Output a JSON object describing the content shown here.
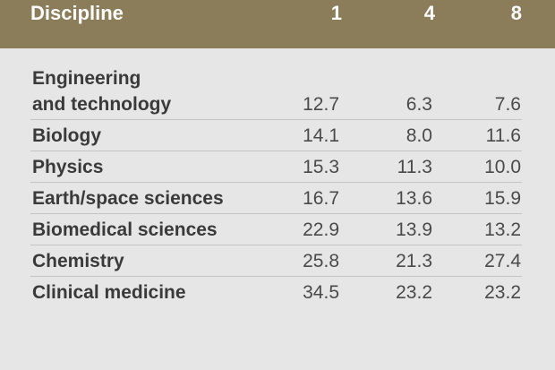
{
  "header": {
    "discipline": "Discipline",
    "col1": "1",
    "col2": "4",
    "col3": "8"
  },
  "rows": [
    {
      "name_line1": "Engineering",
      "name_line2": "and technology",
      "v1": "12.7",
      "v2": "6.3",
      "v3": "7.6"
    },
    {
      "name": "Biology",
      "v1": "14.1",
      "v2": "8.0",
      "v3": "11.6"
    },
    {
      "name": "Physics",
      "v1": "15.3",
      "v2": "11.3",
      "v3": "10.0"
    },
    {
      "name": "Earth/space sciences",
      "v1": "16.7",
      "v2": "13.6",
      "v3": "15.9"
    },
    {
      "name": "Biomedical sciences",
      "v1": "22.9",
      "v2": "13.9",
      "v3": "13.2"
    },
    {
      "name": "Chemistry",
      "v1": "25.8",
      "v2": "21.3",
      "v3": "27.4"
    },
    {
      "name": "Clinical medicine",
      "v1": "34.5",
      "v2": "23.2",
      "v3": "23.2"
    }
  ],
  "colors": {
    "header_bg": "#8b7d5a",
    "body_bg": "#e6e6e6"
  }
}
